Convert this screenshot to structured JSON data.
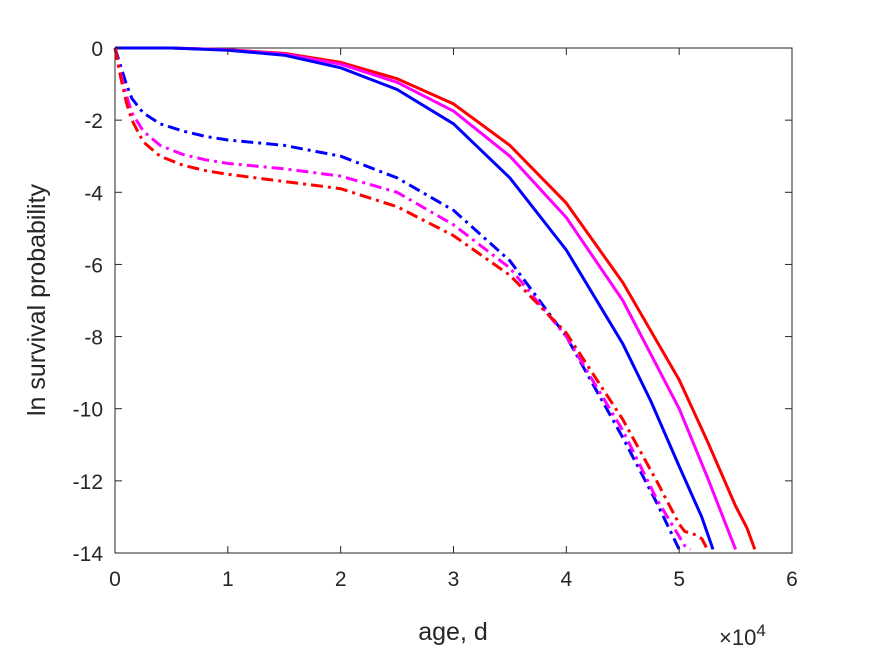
{
  "chart_data": {
    "type": "line",
    "title": "",
    "xlabel": "age, d",
    "ylabel": "ln survival probability",
    "x_exponent_label": {
      "base": "×10",
      "exponent": "4"
    },
    "xlim": [
      0,
      60000
    ],
    "ylim": [
      -14,
      0
    ],
    "x_tick_values": [
      0,
      10000,
      20000,
      30000,
      40000,
      50000,
      60000
    ],
    "x_tick_labels": [
      "0",
      "1",
      "2",
      "3",
      "4",
      "5",
      "6"
    ],
    "y_tick_values": [
      0,
      -2,
      -4,
      -6,
      -8,
      -10,
      -12,
      -14
    ],
    "y_tick_labels": [
      "0",
      "-2",
      "-4",
      "-6",
      "-8",
      "-10",
      "-12",
      "-14"
    ],
    "grid": false,
    "series": [
      {
        "color": "#ff0000",
        "style": "solid",
        "x": [
          0,
          5000,
          10000,
          15000,
          20000,
          25000,
          30000,
          35000,
          40000,
          45000,
          50000,
          52500,
          55000,
          56000,
          56700
        ],
        "y": [
          0,
          0,
          -0.05,
          -0.15,
          -0.4,
          -0.85,
          -1.55,
          -2.7,
          -4.3,
          -6.5,
          -9.2,
          -10.9,
          -12.7,
          -13.3,
          -13.9
        ]
      },
      {
        "color": "#ff00ff",
        "style": "solid",
        "x": [
          0,
          5000,
          10000,
          15000,
          20000,
          25000,
          30000,
          35000,
          40000,
          45000,
          50000,
          52500,
          55000
        ],
        "y": [
          0,
          0,
          -0.05,
          -0.17,
          -0.45,
          -0.95,
          -1.75,
          -3.0,
          -4.7,
          -7.0,
          -10.0,
          -11.9,
          -13.9
        ]
      },
      {
        "color": "#0000ff",
        "style": "solid",
        "x": [
          0,
          5000,
          10000,
          15000,
          20000,
          25000,
          30000,
          35000,
          40000,
          45000,
          47500,
          50000,
          52000,
          53000
        ],
        "y": [
          0,
          0,
          -0.06,
          -0.2,
          -0.55,
          -1.15,
          -2.1,
          -3.6,
          -5.6,
          -8.2,
          -9.8,
          -11.6,
          -13.0,
          -13.9
        ]
      },
      {
        "color": "#0000ff",
        "style": "dashdot",
        "x": [
          0,
          500,
          1000,
          1500,
          2500,
          4000,
          6000,
          8000,
          10000,
          15000,
          20000,
          25000,
          30000,
          35000,
          40000,
          45000,
          48000,
          50000
        ],
        "y": [
          0,
          -0.5,
          -1.0,
          -1.4,
          -1.8,
          -2.1,
          -2.3,
          -2.45,
          -2.55,
          -2.7,
          -3.0,
          -3.6,
          -4.5,
          -5.9,
          -8.0,
          -10.8,
          -12.6,
          -13.9
        ]
      },
      {
        "color": "#ff00ff",
        "style": "dashdot",
        "x": [
          0,
          500,
          1000,
          1500,
          2500,
          4000,
          6000,
          8000,
          10000,
          15000,
          20000,
          25000,
          30000,
          35000,
          40000,
          45000,
          48000,
          50500,
          51000
        ],
        "y": [
          0,
          -0.7,
          -1.3,
          -1.8,
          -2.3,
          -2.7,
          -2.95,
          -3.1,
          -3.2,
          -3.35,
          -3.55,
          -4.0,
          -4.9,
          -6.1,
          -8.0,
          -10.6,
          -12.5,
          -13.8,
          -13.9
        ]
      },
      {
        "color": "#ff0000",
        "style": "dashdot",
        "x": [
          0,
          500,
          1000,
          1500,
          2500,
          4000,
          6000,
          8000,
          10000,
          15000,
          20000,
          25000,
          30000,
          35000,
          40000,
          45000,
          48000,
          50000,
          50500,
          51500,
          52000,
          52500
        ],
        "y": [
          0,
          -0.8,
          -1.5,
          -2.0,
          -2.6,
          -3.0,
          -3.25,
          -3.4,
          -3.5,
          -3.7,
          -3.9,
          -4.4,
          -5.2,
          -6.3,
          -7.9,
          -10.3,
          -12.0,
          -13.2,
          -13.4,
          -13.5,
          -13.6,
          -13.9
        ]
      }
    ]
  }
}
